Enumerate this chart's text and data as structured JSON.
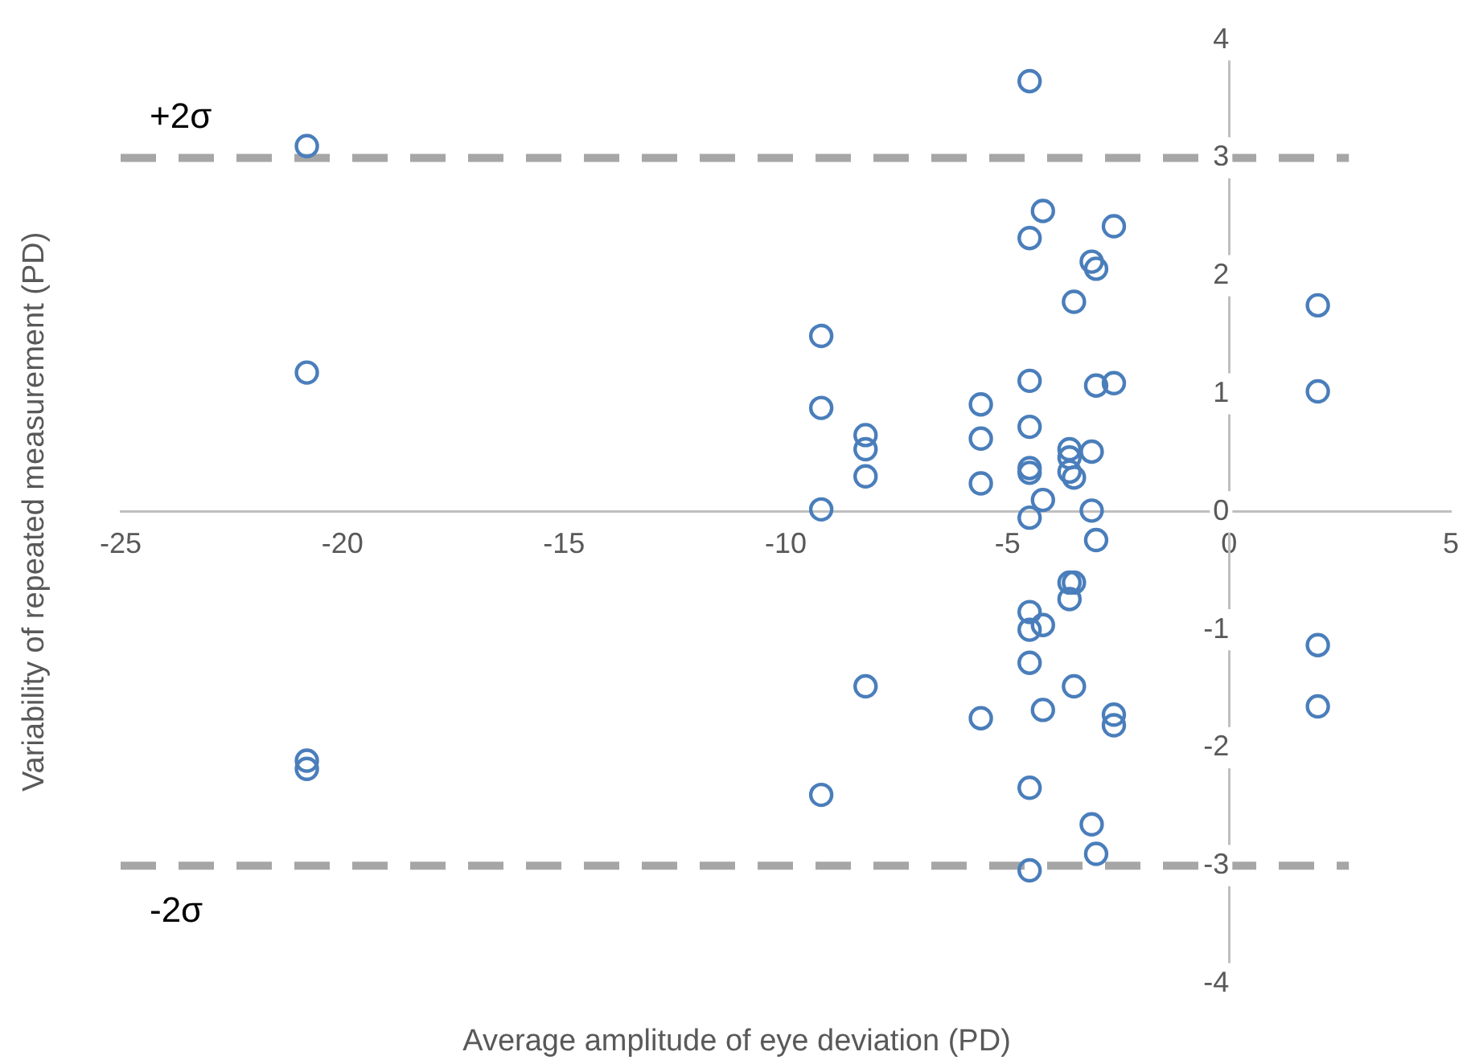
{
  "chart_data": {
    "type": "scatter",
    "xlabel": "Average amplitude of eye deviation (PD)",
    "ylabel": "Variability of repeated measurement (PD)",
    "xlim": [
      -25,
      5
    ],
    "xticks": [
      -25,
      -20,
      -15,
      -10,
      -5,
      0,
      5
    ],
    "ylim": [
      -4,
      4
    ],
    "yticks": [
      -4,
      -3,
      -2,
      -1,
      0,
      1,
      2,
      3,
      4
    ],
    "grid": false,
    "legend": false,
    "marker": "circle",
    "ref_lines": [
      {
        "axis": "y",
        "value": 3,
        "label": "+2σ",
        "color": "#a6a6a6",
        "line_style": "dashed"
      },
      {
        "axis": "y",
        "value": -3,
        "label": "-2σ",
        "color": "#a6a6a6",
        "line_style": "dashed"
      }
    ],
    "series": [
      {
        "color": "#4a7ebb",
        "x": [
          -20.8,
          -20.8,
          -20.8,
          -20.8,
          -9.2,
          -9.2,
          -9.2,
          -9.2,
          -8.2,
          -8.2,
          -8.2,
          -8.2,
          -5.6,
          -5.6,
          -5.6,
          -5.6,
          -4.5,
          -4.2,
          -4.5,
          -2.6,
          -3.1,
          -3.0,
          -3.5,
          2.0,
          2.0,
          -4.5,
          -3.0,
          -2.6,
          -4.5,
          -4.5,
          -4.5,
          -3.6,
          -3.6,
          -3.6,
          -3.5,
          -3.1,
          -4.2,
          -4.5,
          -3.1,
          -3.0,
          -3.6,
          -3.5,
          -3.6,
          -4.5,
          -4.2,
          -4.5,
          -4.5,
          -3.5,
          -4.2,
          -2.6,
          -2.6,
          2.0,
          2.0,
          -4.5,
          -3.1,
          -3.0,
          -4.5
        ],
        "values": [
          3.1,
          1.18,
          -2.11,
          -2.18,
          1.49,
          0.88,
          0.02,
          -2.4,
          0.65,
          0.53,
          0.3,
          -1.48,
          0.91,
          0.62,
          0.24,
          -1.75,
          3.65,
          2.55,
          2.32,
          2.42,
          2.12,
          2.06,
          1.78,
          1.75,
          1.02,
          1.11,
          1.07,
          1.09,
          0.72,
          0.37,
          0.33,
          0.53,
          0.46,
          0.34,
          0.29,
          0.51,
          0.1,
          -0.05,
          0.01,
          -0.24,
          -0.6,
          -0.6,
          -0.74,
          -0.85,
          -0.96,
          -1.0,
          -1.28,
          -1.48,
          -1.68,
          -1.72,
          -1.81,
          -1.13,
          -1.65,
          -2.34,
          -2.65,
          -2.9,
          -3.04
        ]
      }
    ]
  }
}
